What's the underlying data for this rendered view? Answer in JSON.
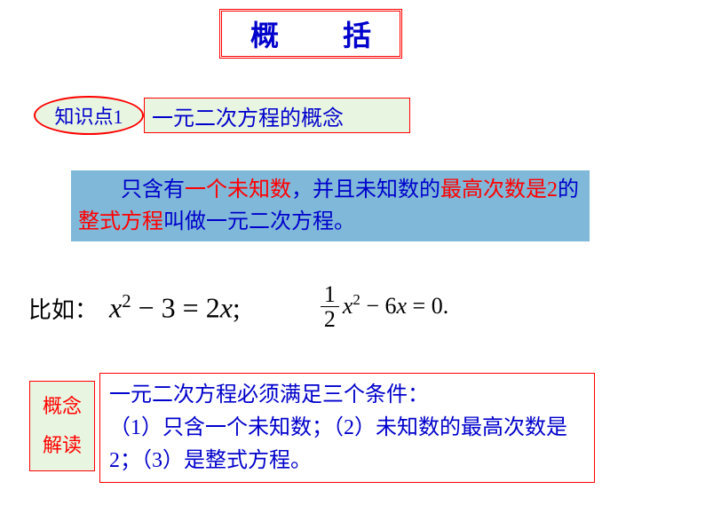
{
  "title": "概　括",
  "knowledge_tag": "知识点1",
  "concept_title": "一元二次方程的概念",
  "definition": {
    "indent": "　　",
    "p1": "只含有",
    "r1": "一个未知数",
    "p2": "，并且未知数的",
    "r2": "最高次数是2",
    "p3": "的",
    "r3": "整式方程",
    "p4": "叫做一元二次方程。"
  },
  "example_label": "比如：",
  "eq1": {
    "x": "x",
    "sq": "2",
    "minus3": " − 3 = 2",
    "x2": "x",
    "semi": ";"
  },
  "eq2": {
    "num": "1",
    "den": "2",
    "x": "x",
    "sq": "2",
    "mid": " − 6",
    "x2": "x",
    "eqz": " = 0."
  },
  "interpret_l1": "概念",
  "interpret_l2": "解读",
  "conditions": {
    "line1": "一元二次方程必须满足三个条件：",
    "c1_paren": "（1）",
    "c1_text": "只含一个未知数；",
    "c2_paren": "（2）",
    "c2_text": "未知数的最高次数是2；",
    "c3_paren": "（3）",
    "c3_text": "是整式方程。"
  },
  "colors": {
    "red": "#ff0000",
    "blue": "#0000cc",
    "blue_bg": "#7fb8d8",
    "green_bg": "#e8f5e0"
  }
}
